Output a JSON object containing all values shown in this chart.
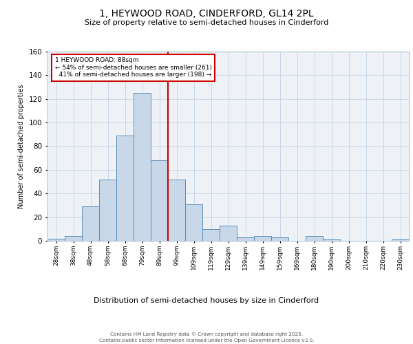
{
  "title_line1": "1, HEYWOOD ROAD, CINDERFORD, GL14 2PL",
  "title_line2": "Size of property relative to semi-detached houses in Cinderford",
  "xlabel": "Distribution of semi-detached houses by size in Cinderford",
  "ylabel": "Number of semi-detached properties",
  "categories": [
    "28sqm",
    "38sqm",
    "48sqm",
    "58sqm",
    "68sqm",
    "79sqm",
    "89sqm",
    "99sqm",
    "109sqm",
    "119sqm",
    "129sqm",
    "139sqm",
    "149sqm",
    "159sqm",
    "169sqm",
    "180sqm",
    "190sqm",
    "200sqm",
    "210sqm",
    "220sqm",
    "230sqm"
  ],
  "values": [
    2,
    4,
    29,
    52,
    89,
    125,
    68,
    52,
    31,
    10,
    13,
    3,
    4,
    3,
    0,
    4,
    1,
    0,
    0,
    0,
    1
  ],
  "bar_color": "#c8d8e8",
  "bar_edge_color": "#5b8db8",
  "vline_color": "#cc0000",
  "annotation_box_color": "#cc0000",
  "property_label": "1 HEYWOOD ROAD: 88sqm",
  "smaller_pct": "54% of semi-detached houses are smaller (261)",
  "larger_pct": "41% of semi-detached houses are larger (198)",
  "ylim": [
    0,
    160
  ],
  "yticks": [
    0,
    20,
    40,
    60,
    80,
    100,
    120,
    140,
    160
  ],
  "grid_color": "#c8d8e8",
  "bg_color": "#eef2f7",
  "footer_line1": "Contains HM Land Registry data © Crown copyright and database right 2025.",
  "footer_line2": "Contains public sector information licensed under the Open Government Licence v3.0."
}
